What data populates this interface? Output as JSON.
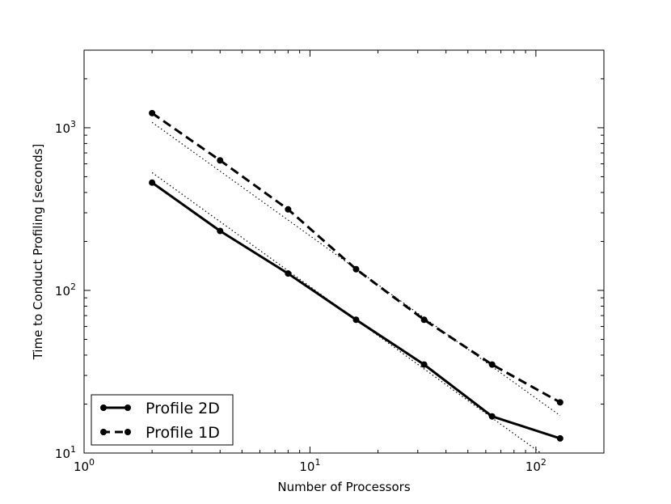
{
  "chart_data": {
    "type": "line",
    "title": "",
    "xlabel": "Number of Processors",
    "ylabel": "Time to Conduct Profiling [seconds]",
    "xscale": "log",
    "yscale": "log",
    "xlim": [
      1,
      200
    ],
    "ylim": [
      10,
      3000
    ],
    "grid": false,
    "legend_position": "lower-left",
    "x_ticks": [
      {
        "value": 1,
        "base": "10",
        "exp": "0"
      },
      {
        "value": 10,
        "base": "10",
        "exp": "1"
      },
      {
        "value": 100,
        "base": "10",
        "exp": "2"
      }
    ],
    "y_ticks": [
      {
        "value": 10,
        "base": "10",
        "exp": "1"
      },
      {
        "value": 100,
        "base": "10",
        "exp": "2"
      },
      {
        "value": 1000,
        "base": "10",
        "exp": "3"
      }
    ],
    "x": [
      2,
      4,
      8,
      16,
      32,
      64,
      128
    ],
    "series": [
      {
        "name": "Profile 2D",
        "style": "solid",
        "values": [
          460,
          232,
          127,
          66,
          35,
          16.8,
          12.3
        ]
      },
      {
        "name": "Profile 1D",
        "style": "dashed",
        "values": [
          1230,
          630,
          315,
          135,
          66,
          35,
          20.5
        ]
      }
    ],
    "reference_lines": [
      {
        "style": "dotted",
        "x": [
          2,
          105
        ],
        "y": [
          530,
          10
        ]
      },
      {
        "style": "dotted",
        "x": [
          2,
          128
        ],
        "y": [
          1080,
          17
        ]
      }
    ],
    "colors": {
      "line": "#000000",
      "background": "#ffffff"
    }
  }
}
